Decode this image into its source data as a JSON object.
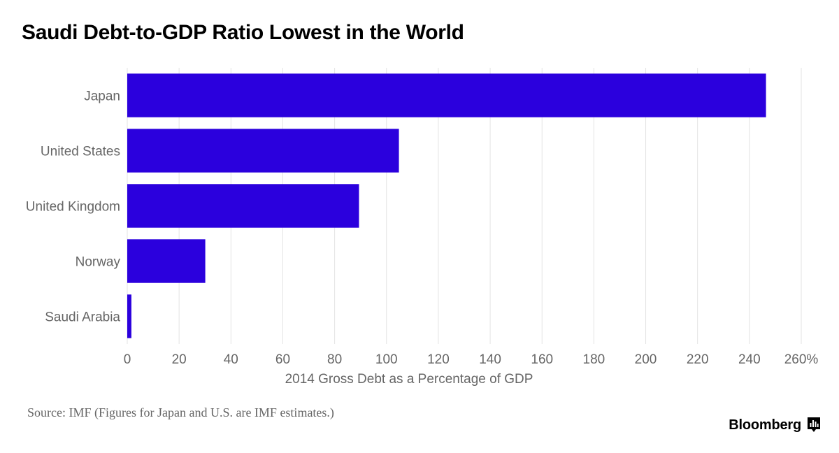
{
  "colors": {
    "bar": "#2b00dd",
    "grid": "#e3e3e3",
    "text_muted": "#666666"
  },
  "footer": {
    "source": "Source: IMF (Figures for Japan and U.S. are IMF estimates.)",
    "brand": "Bloomberg",
    "brand_icon": "bar-chart-icon"
  },
  "chart_data": {
    "type": "bar",
    "orientation": "horizontal",
    "title": "Saudi Debt-to-GDP Ratio Lowest in the World",
    "xlabel": "2014 Gross Debt as a Percentage of GDP",
    "ylabel": "",
    "categories": [
      "Japan",
      "United States",
      "United Kingdom",
      "Norway",
      "Saudi Arabia"
    ],
    "values": [
      246.4,
      104.8,
      89.4,
      30.1,
      1.6
    ],
    "xlim": [
      0,
      260
    ],
    "ticks": [
      {
        "value": 0,
        "label": "0"
      },
      {
        "value": 20,
        "label": "20"
      },
      {
        "value": 40,
        "label": "40"
      },
      {
        "value": 60,
        "label": "60"
      },
      {
        "value": 80,
        "label": "80"
      },
      {
        "value": 100,
        "label": "100"
      },
      {
        "value": 120,
        "label": "120"
      },
      {
        "value": 140,
        "label": "140"
      },
      {
        "value": 160,
        "label": "160"
      },
      {
        "value": 180,
        "label": "180"
      },
      {
        "value": 200,
        "label": "200"
      },
      {
        "value": 220,
        "label": "220"
      },
      {
        "value": 240,
        "label": "240"
      },
      {
        "value": 260,
        "label": "260%"
      }
    ],
    "grid": true,
    "legend": "none"
  }
}
